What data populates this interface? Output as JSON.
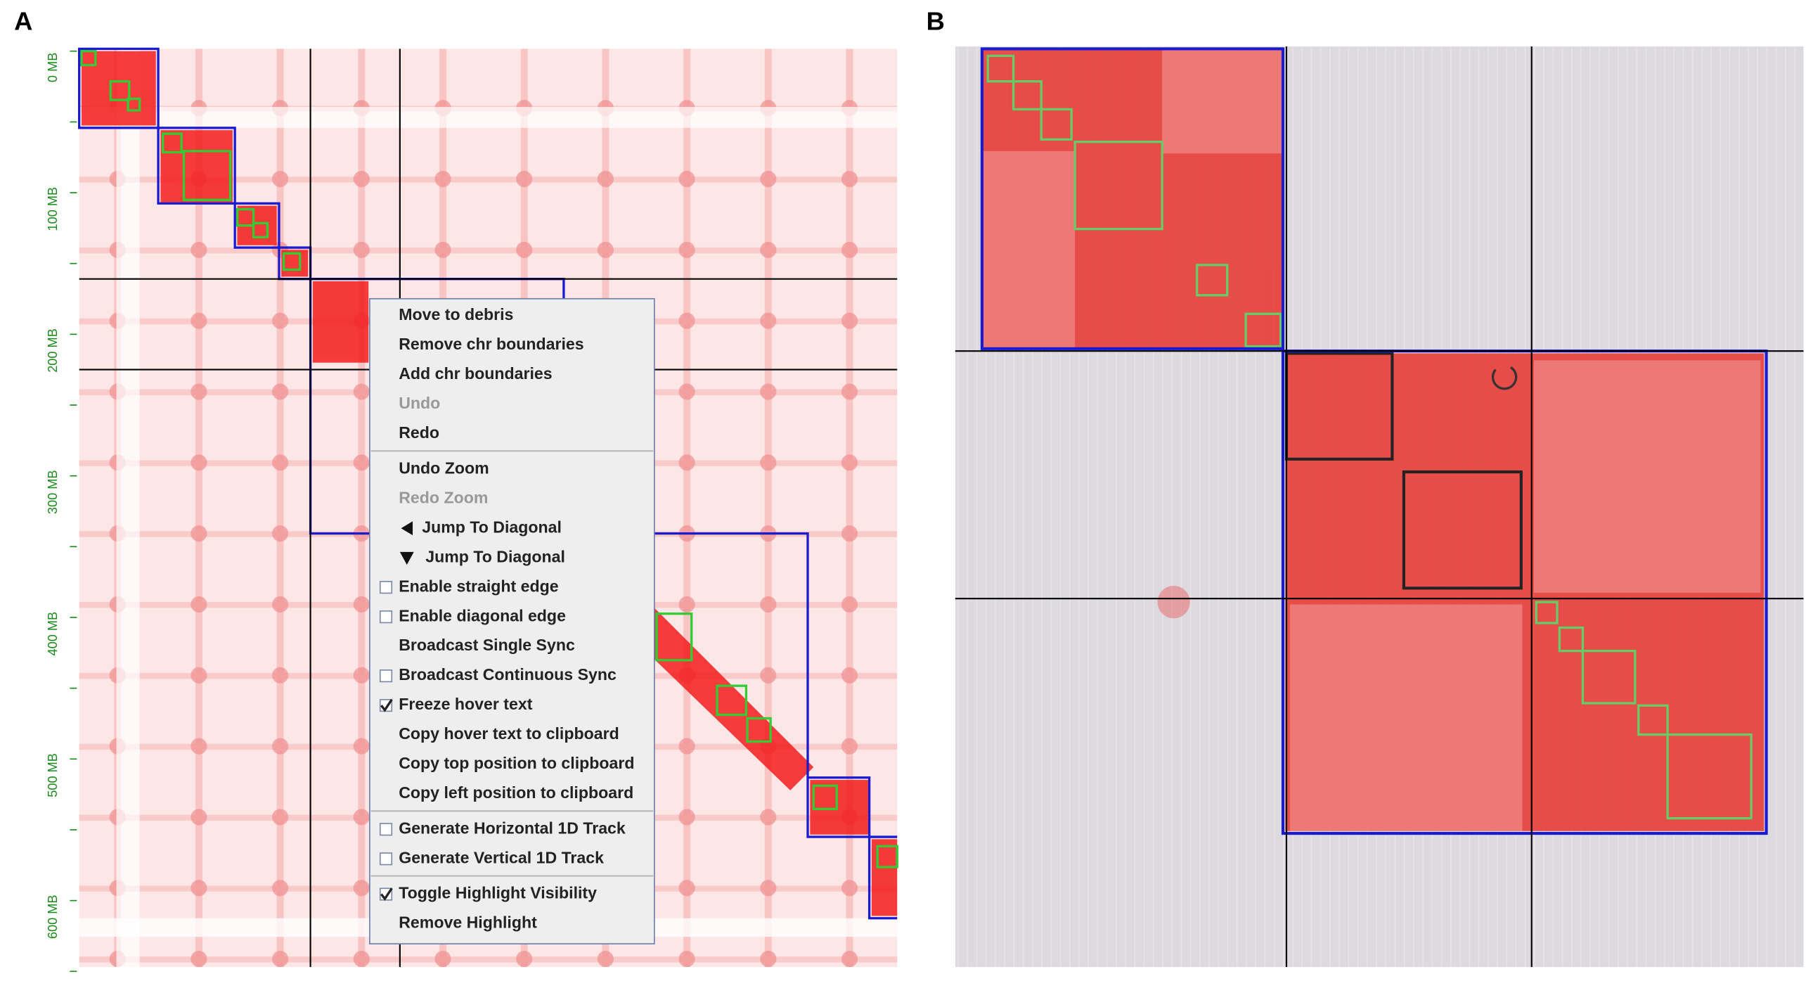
{
  "panels": [
    {
      "label": "A",
      "axis_labels": [
        "0 MB",
        "100 MB",
        "200 MB",
        "300 MB",
        "400 MB",
        "500 MB",
        "600 MB"
      ],
      "menu": {
        "groups": [
          [
            {
              "label": "Move to debris"
            },
            {
              "label": "Remove chr boundaries"
            },
            {
              "label": "Add chr boundaries"
            },
            {
              "label": "Undo",
              "disabled": true
            },
            {
              "label": "Redo"
            }
          ],
          [
            {
              "label": "Undo Zoom"
            },
            {
              "label": "Redo Zoom",
              "disabled": true
            },
            {
              "label": "Jump To Diagonal",
              "icon": "left-arrow"
            },
            {
              "label": "Jump To Diagonal",
              "icon": "down-arrow"
            },
            {
              "label": "Enable straight edge",
              "icon": "checkbox"
            },
            {
              "label": "Enable diagonal edge",
              "icon": "checkbox"
            },
            {
              "label": "Broadcast Single Sync"
            },
            {
              "label": "Broadcast Continuous Sync",
              "icon": "checkbox"
            },
            {
              "label": "Freeze hover text",
              "icon": "checked"
            },
            {
              "label": "Copy hover text to clipboard"
            },
            {
              "label": "Copy top position to clipboard"
            },
            {
              "label": "Copy left position to clipboard"
            }
          ],
          [
            {
              "label": "Generate Horizontal 1D Track",
              "icon": "checkbox"
            },
            {
              "label": "Generate Vertical 1D Track",
              "icon": "checkbox"
            }
          ],
          [
            {
              "label": "Toggle Highlight Visibility",
              "icon": "checked"
            },
            {
              "label": "Remove Highlight"
            }
          ]
        ]
      }
    },
    {
      "label": "B"
    }
  ]
}
